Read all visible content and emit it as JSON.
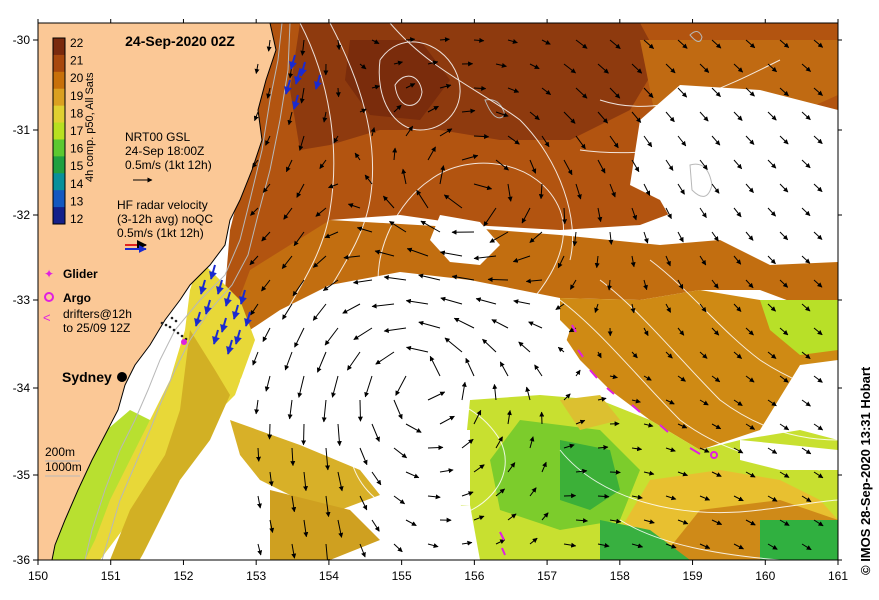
{
  "map": {
    "title": "24-Sep-2020 02Z",
    "colorbar": {
      "label": "4h comp. p50, All Sats",
      "ticks": [
        "22",
        "21",
        "20",
        "19",
        "18",
        "17",
        "16",
        "15",
        "14",
        "13",
        "12"
      ],
      "colors": [
        "#7a2a0e",
        "#a8480e",
        "#c8700a",
        "#dba020",
        "#e0d030",
        "#b8e020",
        "#5cc830",
        "#20a040",
        "#08909a",
        "#1458c0",
        "#14208a"
      ]
    },
    "legend": {
      "gsl_line1": "NRT00 GSL",
      "gsl_line2": "24-Sep 18:00Z",
      "gsl_line3": "0.5m/s (1kt 12h)",
      "hf_line1": "HF radar velocity",
      "hf_line2": "(3-12h avg) noQC",
      "hf_line3": "0.5m/s (1kt 12h)",
      "glider": "Glider",
      "argo": "Argo",
      "drifters_line1": "drifters@12h",
      "drifters_line2": "to 25/09 12Z",
      "depth_200": "200m",
      "depth_1000": "1000m"
    },
    "city": "Sydney",
    "credit": "© IMOS 28-Sep-2020 13:31 Hobart",
    "lon_ticks": [
      "150",
      "151",
      "152",
      "153",
      "154",
      "155",
      "156",
      "157",
      "158",
      "159",
      "160",
      "161"
    ],
    "lat_ticks": [
      "-30",
      "-31",
      "-32",
      "-33",
      "-34",
      "-35",
      "-36"
    ],
    "colors": {
      "land": "#fbc896",
      "cloud": "#ffffff",
      "glider": "#e020e0",
      "hf_arrow": "#1a2ad0"
    }
  }
}
